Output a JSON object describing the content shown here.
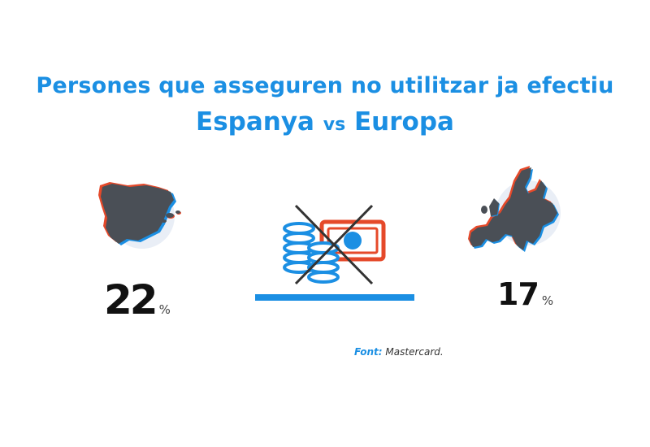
{
  "title": {
    "line1": "Persones que asseguren no utilitzar ja efectiu",
    "line2_left": "Espanya",
    "line2_vs": "vs",
    "line2_right": "Europa"
  },
  "colors": {
    "blue": "#1b8fe3",
    "orange_red": "#e5492a",
    "map_gray": "#4a4f56",
    "circle_bg": "#e9eef6",
    "text_dark": "#111111"
  },
  "stats": {
    "spain": {
      "value": "22",
      "unit": "%"
    },
    "europe": {
      "value": "17",
      "unit": "%"
    }
  },
  "source": {
    "label": "Font:",
    "text": "Mastercard."
  },
  "icons": {
    "spain_map": "spain-map-icon",
    "europe_map": "europe-map-icon",
    "no_cash": "no-cash-icon"
  },
  "chart_data": {
    "type": "table",
    "title": "Persones que asseguren no utilitzar ja efectiu",
    "subtitle": "Espanya vs Europa",
    "categories": [
      "Espanya",
      "Europa"
    ],
    "values": [
      22,
      17
    ],
    "unit": "%",
    "source": "Mastercard."
  }
}
